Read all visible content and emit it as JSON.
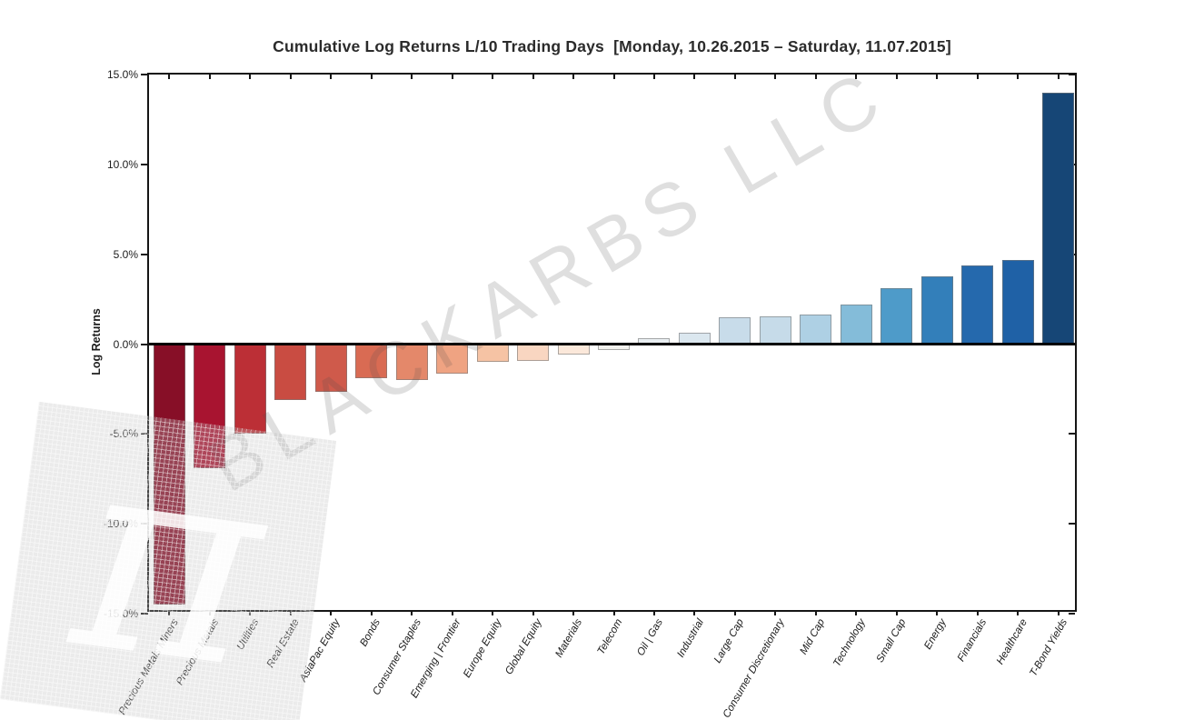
{
  "chart_data": {
    "type": "bar",
    "title": "Cumulative Log Returns L/10 Trading Days  [Monday, 10.26.2015 – Saturday, 11.07.2015]",
    "ylabel": "Log Returns",
    "xlabel": "",
    "ylim": [
      -15,
      15
    ],
    "grid": false,
    "legend": false,
    "categories": [
      "Precious Metals Miners",
      "Precious Metals",
      "Utilities",
      "Real Estate",
      "AsiaPac Equity",
      "Bonds",
      "Consumer Staples",
      "Emerging | Frontier",
      "Europe Equity",
      "Global Equity",
      "Materials",
      "Telecom",
      "Oil | Gas",
      "Industrial",
      "Large Cap",
      "Consumer Discretionary",
      "Mid Cap",
      "Technology",
      "Small Cap",
      "Energy",
      "Financials",
      "Healthcare",
      "T-Bond Yields"
    ],
    "values": [
      -14.5,
      -6.9,
      -5.0,
      -3.1,
      -2.65,
      -1.9,
      -2.0,
      -1.65,
      -1.0,
      -0.95,
      -0.6,
      -0.35,
      0.35,
      0.65,
      1.5,
      1.55,
      1.65,
      2.2,
      3.1,
      3.75,
      4.4,
      4.7,
      14.0
    ],
    "bar_colors": [
      "#870f27",
      "#a81430",
      "#bc2f36",
      "#c94c42",
      "#cf5a4b",
      "#d96b53",
      "#e4886a",
      "#efa382",
      "#f6c3a4",
      "#f9d6c1",
      "#fbe8da",
      "#f3f2ee",
      "#e9eef1",
      "#dbe7ef",
      "#c8dcea",
      "#c6dbe9",
      "#aed0e4",
      "#84bcd9",
      "#4e9bc9",
      "#337fba",
      "#2569ad",
      "#1f61a6",
      "#164676"
    ],
    "yticks": [
      {
        "label": "15.0%",
        "value": 15
      },
      {
        "label": "10.0%",
        "value": 10
      },
      {
        "label": "5.0%",
        "value": 5
      },
      {
        "label": "0.0%",
        "value": 0
      },
      {
        "label": "-5.0%",
        "value": -5
      },
      {
        "label": "-10.0%",
        "value": -10
      },
      {
        "label": "-15.0%",
        "value": -15
      }
    ]
  },
  "watermark": {
    "text": "BLACKARBS LLC",
    "logo_glyph": "π"
  }
}
